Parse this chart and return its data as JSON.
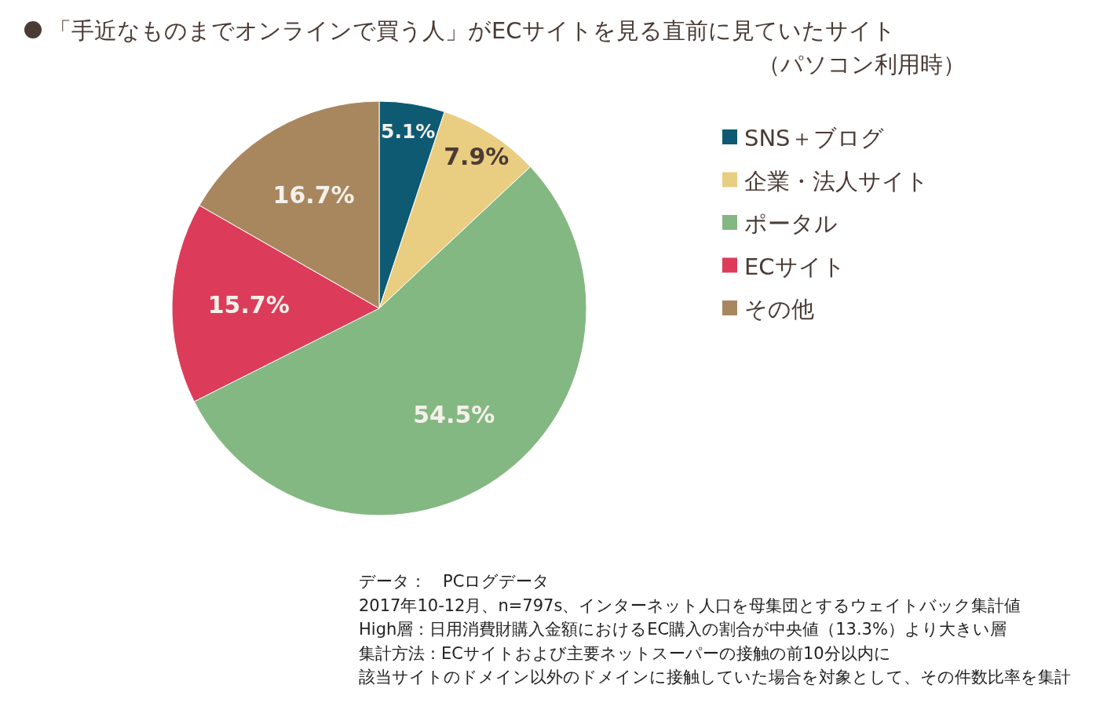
{
  "chart_data": {
    "type": "pie",
    "title": "「手近なものまでオンラインで買う人」がECサイトを見る直前に見ていたサイト",
    "subtitle": "（パソコン利用時）",
    "categories": [
      "SNS＋ブログ",
      "企業・法人サイト",
      "ポータル",
      "ECサイト",
      "その他"
    ],
    "values": [
      5.1,
      7.9,
      54.5,
      15.7,
      16.7
    ],
    "colors": [
      "#0e5a73",
      "#e9cd80",
      "#84b882",
      "#dc3c5a",
      "#a8875f"
    ],
    "value_labels": [
      "5.1%",
      "7.9%",
      "54.5%",
      "15.7%",
      "16.7%"
    ],
    "legend": "right",
    "annotations": [
      "データ：　PCログデータ",
      "2017年10-12月、n=797s、インターネット人口を母集団とするウェイトバック集計値",
      "High層：日用消費財購入金額におけるEC購入の割合が中央値（13.3%）より大きい層",
      "集計方法：ECサイトおよび主要ネットスーパーの接触の前10分以内に",
      "該当サイトのドメイン以外のドメインに接触していた場合を対象として、その件数比率を集計"
    ]
  }
}
